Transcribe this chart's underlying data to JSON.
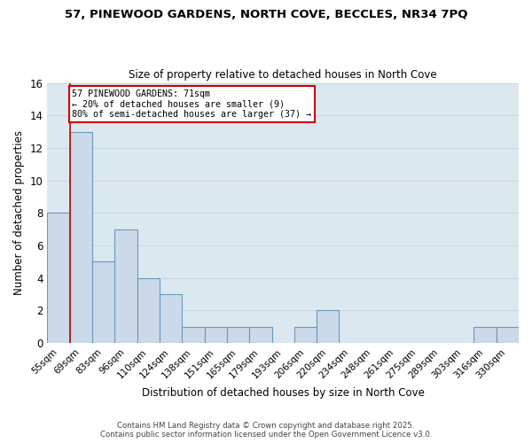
{
  "title_line1": "57, PINEWOOD GARDENS, NORTH COVE, BECCLES, NR34 7PQ",
  "title_line2": "Size of property relative to detached houses in North Cove",
  "xlabel": "Distribution of detached houses by size in North Cove",
  "ylabel": "Number of detached properties",
  "bin_labels": [
    "55sqm",
    "69sqm",
    "83sqm",
    "96sqm",
    "110sqm",
    "124sqm",
    "138sqm",
    "151sqm",
    "165sqm",
    "179sqm",
    "193sqm",
    "206sqm",
    "220sqm",
    "234sqm",
    "248sqm",
    "261sqm",
    "275sqm",
    "289sqm",
    "303sqm",
    "316sqm",
    "330sqm"
  ],
  "bar_values": [
    8,
    13,
    5,
    7,
    4,
    3,
    1,
    1,
    1,
    1,
    0,
    1,
    2,
    0,
    0,
    0,
    0,
    0,
    0,
    1,
    1
  ],
  "bar_color": "#ccd9e8",
  "bar_edge_color": "#6699bb",
  "annotation_line1": "57 PINEWOOD GARDENS: 71sqm",
  "annotation_line2": "← 20% of detached houses are smaller (9)",
  "annotation_line3": "80% of semi-detached houses are larger (37) →",
  "annotation_box_facecolor": "#ffffff",
  "annotation_box_edgecolor": "#cc0000",
  "vline_color": "#cc0000",
  "ylim": [
    0,
    16
  ],
  "yticks": [
    0,
    2,
    4,
    6,
    8,
    10,
    12,
    14,
    16
  ],
  "grid_color": "#c5d5e5",
  "background_color": "#dce8f0",
  "figure_facecolor": "#ffffff",
  "footer_line1": "Contains HM Land Registry data © Crown copyright and database right 2025.",
  "footer_line2": "Contains public sector information licensed under the Open Government Licence v3.0."
}
